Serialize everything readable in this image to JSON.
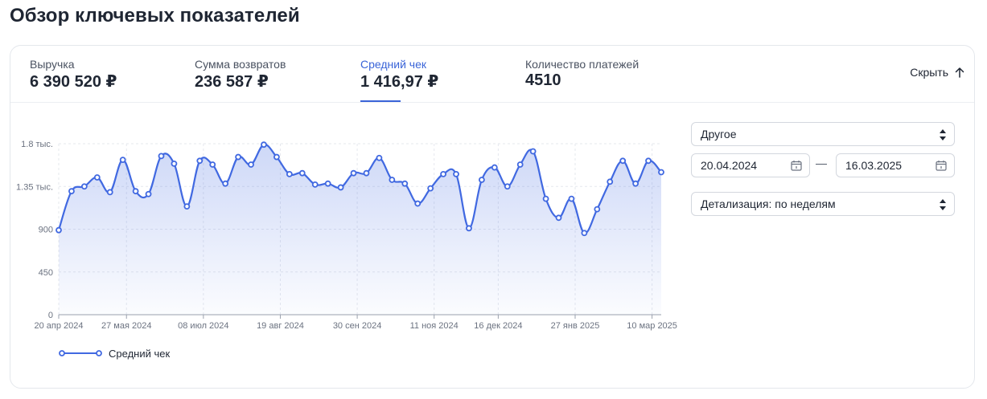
{
  "page": {
    "title": "Обзор ключевых показателей"
  },
  "kpis": [
    {
      "label": "Выручка",
      "value": "6 390 520 ₽",
      "active": false
    },
    {
      "label": "Сумма возвратов",
      "value": "236 587 ₽",
      "active": false
    },
    {
      "label": "Средний чек",
      "value": "1 416,97 ₽",
      "active": true
    },
    {
      "label": "Количество платежей",
      "value": "4510",
      "active": false
    }
  ],
  "hide_button": {
    "label": "Скрыть",
    "icon": "arrow-up-icon"
  },
  "controls": {
    "period_select": {
      "value": "Другое",
      "icon": "sort-icon"
    },
    "date_from": {
      "value": "20.04.2024",
      "icon": "calendar-icon"
    },
    "date_separator": "—",
    "date_to": {
      "value": "16.03.2025",
      "icon": "calendar-icon"
    },
    "detail_select": {
      "value": "Детализация: по неделям",
      "icon": "sort-icon"
    }
  },
  "colors": {
    "accent": "#3a64d8",
    "line": "#4169e1",
    "text": "#1f2633",
    "muted": "#6b7280"
  },
  "chart_data": {
    "type": "area",
    "title": "",
    "xlabel": "",
    "ylabel": "",
    "x": [
      "2024-04-20",
      "2024-04-27",
      "2024-05-04",
      "2024-05-11",
      "2024-05-18",
      "2024-05-25",
      "2024-06-01",
      "2024-06-08",
      "2024-06-15",
      "2024-06-22",
      "2024-06-29",
      "2024-07-06",
      "2024-07-13",
      "2024-07-20",
      "2024-07-27",
      "2024-08-03",
      "2024-08-10",
      "2024-08-17",
      "2024-08-24",
      "2024-08-31",
      "2024-09-07",
      "2024-09-14",
      "2024-09-21",
      "2024-09-28",
      "2024-10-05",
      "2024-10-12",
      "2024-10-19",
      "2024-10-26",
      "2024-11-02",
      "2024-11-09",
      "2024-11-16",
      "2024-11-23",
      "2024-11-30",
      "2024-12-07",
      "2024-12-14",
      "2024-12-21",
      "2024-12-28",
      "2025-01-04",
      "2025-01-11",
      "2025-01-18",
      "2025-01-25",
      "2025-02-01",
      "2025-02-08",
      "2025-02-15",
      "2025-02-22",
      "2025-03-01",
      "2025-03-08",
      "2025-03-15"
    ],
    "series": [
      {
        "name": "Средний чек",
        "values": [
          890,
          1300,
          1350,
          1445,
          1290,
          1630,
          1300,
          1270,
          1670,
          1590,
          1140,
          1620,
          1580,
          1380,
          1660,
          1580,
          1790,
          1660,
          1480,
          1490,
          1370,
          1380,
          1340,
          1490,
          1490,
          1650,
          1420,
          1380,
          1170,
          1330,
          1480,
          1480,
          910,
          1420,
          1550,
          1350,
          1580,
          1720,
          1220,
          1020,
          1220,
          860,
          1110,
          1400,
          1620,
          1380,
          1620,
          1500
        ]
      }
    ],
    "xticks": [
      {
        "date": "2024-04-20",
        "label": "20 апр 2024"
      },
      {
        "date": "2024-05-27",
        "label": "27 мая 2024"
      },
      {
        "date": "2024-07-08",
        "label": "08 июл 2024"
      },
      {
        "date": "2024-08-19",
        "label": "19 авг 2024"
      },
      {
        "date": "2024-09-30",
        "label": "30 сен 2024"
      },
      {
        "date": "2024-11-11",
        "label": "11 ноя 2024"
      },
      {
        "date": "2024-12-16",
        "label": "16 дек 2024"
      },
      {
        "date": "2025-01-27",
        "label": "27 янв 2025"
      },
      {
        "date": "2025-03-10",
        "label": "10 мар 2025"
      }
    ],
    "yticks": [
      {
        "value": 0,
        "label": "0"
      },
      {
        "value": 450,
        "label": "450"
      },
      {
        "value": 900,
        "label": "900"
      },
      {
        "value": 1350,
        "label": "1.35 тыс."
      },
      {
        "value": 1800,
        "label": "1.8 тыс."
      }
    ],
    "ylim": [
      0,
      1800
    ],
    "xlim": [
      "2024-04-20",
      "2025-03-15"
    ],
    "grid": true,
    "legend": "bottom-left"
  }
}
